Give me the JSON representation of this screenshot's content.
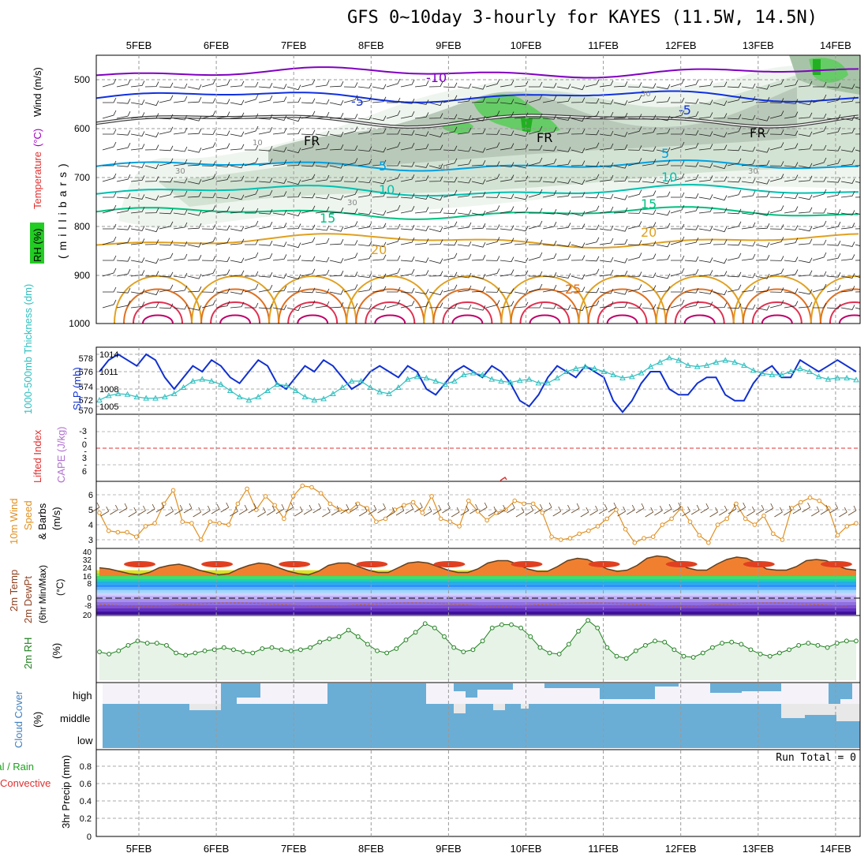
{
  "chart_data": {
    "type": "meteogram",
    "title": "GFS 0~10day 3-hourly for KAYES (11.5W, 14.5N)",
    "dates": [
      "5FEB",
      "6FEB",
      "7FEB",
      "8FEB",
      "9FEB",
      "10FEB",
      "11FEB",
      "12FEB",
      "13FEB",
      "14FEB"
    ],
    "upper": {
      "ylabel": "(millibars)",
      "title_parts": [
        {
          "text": "RH (%)",
          "color": "#00b000"
        },
        {
          "text": "Temperature",
          "color": "#e03030"
        },
        {
          "text": "(°C)",
          "color": "#a000c0"
        },
        {
          "text": "Wind (m/s)",
          "color": "#000000"
        }
      ],
      "ticks": [
        "500",
        "600",
        "700",
        "800",
        "900",
        "1000"
      ],
      "contour_labels": [
        {
          "text": "-10",
          "color": "#8000c0"
        },
        {
          "text": "-5",
          "color": "#1030e0"
        },
        {
          "text": "-5",
          "color": "#1030e0"
        },
        {
          "text": "FR",
          "color": "#000000"
        },
        {
          "text": "FR",
          "color": "#000000"
        },
        {
          "text": "FR",
          "color": "#000000"
        },
        {
          "text": "5",
          "color": "#00a0e0"
        },
        {
          "text": "5",
          "color": "#00a0e0"
        },
        {
          "text": "10",
          "color": "#00c0b0"
        },
        {
          "text": "10",
          "color": "#00c0b0"
        },
        {
          "text": "15",
          "color": "#00c080"
        },
        {
          "text": "15",
          "color": "#00c080"
        },
        {
          "text": "20",
          "color": "#e0a020"
        },
        {
          "text": "20",
          "color": "#e0a020"
        },
        {
          "text": "25",
          "color": "#e07020"
        },
        {
          "text": "10",
          "color": "#888888"
        },
        {
          "text": "30",
          "color": "#888888"
        },
        {
          "text": "50",
          "color": "#888888"
        },
        {
          "text": "30",
          "color": "#888888"
        },
        {
          "text": "30",
          "color": "#888888"
        },
        {
          "text": "30",
          "color": "#888888"
        }
      ]
    },
    "slp_panel": {
      "left_label": "1000-500mb Thickness (dm)",
      "right_label": "SLP (mb)",
      "thickness_ticks": [
        "578",
        "576",
        "574",
        "572",
        "570"
      ],
      "slp_ticks": [
        "1014",
        "1011",
        "1008",
        "1005"
      ],
      "slp": [
        1011,
        1013,
        1014,
        1013,
        1012,
        1014,
        1013,
        1010,
        1008,
        1010,
        1012,
        1011,
        1013,
        1012,
        1010,
        1009,
        1011,
        1013,
        1012,
        1009,
        1008,
        1010,
        1012,
        1011,
        1013,
        1012,
        1010,
        1008,
        1009,
        1011,
        1012,
        1011,
        1010,
        1012,
        1011,
        1008,
        1007,
        1009,
        1011,
        1012,
        1011,
        1010,
        1012,
        1011,
        1009,
        1006,
        1005,
        1007,
        1010,
        1012,
        1011,
        1010,
        1012,
        1011,
        1010,
        1006,
        1004,
        1006,
        1009,
        1011,
        1011,
        1008,
        1007,
        1007,
        1009,
        1010,
        1010,
        1007,
        1006,
        1006,
        1009,
        1011,
        1012,
        1010,
        1010,
        1013,
        1012,
        1011,
        1012,
        1013,
        1012,
        1011
      ],
      "thickness": [
        571.5,
        572.2,
        572.5,
        572.4,
        572.0,
        571.8,
        571.8,
        572.0,
        572.5,
        573.5,
        574.5,
        574.8,
        574.5,
        574.0,
        573.0,
        572.0,
        571.5,
        572.0,
        573.0,
        574.0,
        573.8,
        573.0,
        572.0,
        571.5,
        571.7,
        572.5,
        573.5,
        574.5,
        574.5,
        573.5,
        572.8,
        572.5,
        573.5,
        574.8,
        575.2,
        575.0,
        574.5,
        574.0,
        574.5,
        575.5,
        575.8,
        575.5,
        574.8,
        574.5,
        574.3,
        574.6,
        574.8,
        574.2,
        574.2,
        575.0,
        576.0,
        576.5,
        576.8,
        576.5,
        576.0,
        575.5,
        575.0,
        575.2,
        575.8,
        576.8,
        577.5,
        578.2,
        577.8,
        577.0,
        576.8,
        577.0,
        577.5,
        577.8,
        577.5,
        577.0,
        576.2,
        575.7,
        575.5,
        575.5,
        576.0,
        576.5,
        576.0,
        575.2,
        574.8,
        575.0,
        575.0,
        574.7
      ]
    },
    "li_panel": {
      "left_label": "Lifted Index",
      "right_label": "CAPE (J/kg)",
      "ticks": [
        "-3",
        "-",
        "0",
        "-",
        "3",
        "-",
        "6"
      ],
      "li_zero_label": "0"
    },
    "wind_panel": {
      "label1": "10m Wind",
      "label2": "Speed",
      "label3": "& Barbs",
      "unit": "(m/s)",
      "ticks": [
        "6",
        "5",
        "4",
        "3"
      ],
      "speed": [
        4.8,
        3.6,
        3.5,
        3.5,
        3.2,
        3.9,
        4.1,
        5.4,
        6.3,
        4.2,
        4.1,
        3.0,
        4.2,
        4.1,
        4.0,
        5.4,
        6.4,
        5.0,
        5.9,
        5.3,
        4.4,
        5.9,
        6.6,
        6.5,
        6.1,
        5.4,
        5.0,
        4.9,
        5.4,
        5.1,
        4.2,
        4.4,
        5.0,
        5.3,
        5.5,
        4.8,
        5.9,
        4.4,
        4.2,
        3.9,
        5.6,
        4.9,
        4.3,
        4.8,
        5.0,
        5.6,
        5.4,
        5.4,
        4.8,
        3.2,
        3.0,
        3.1,
        3.4,
        3.6,
        3.9,
        4.4,
        5.0,
        3.7,
        2.8,
        3.1,
        3.2,
        4.0,
        4.4,
        5.1,
        4.2,
        3.3,
        2.8,
        4.0,
        4.4,
        5.4,
        4.4,
        4.0,
        4.6,
        3.4,
        3.0,
        5.1,
        5.5,
        5.8,
        5.6,
        5.1,
        3.3,
        3.9,
        4.1
      ]
    },
    "temp_panel": {
      "label1": "2m Temp",
      "label2": "2m DewPt",
      "label3": "(6hr Min/Max)",
      "unit": "(°C)",
      "ticks": [
        "40",
        "32",
        "24",
        "16",
        "8",
        "0",
        "-8",
        "20"
      ],
      "temp": [
        27,
        26,
        24,
        22,
        21,
        23,
        27,
        29,
        30,
        28,
        25,
        23,
        21,
        22,
        26,
        29,
        31,
        30,
        27,
        24,
        22,
        21,
        24,
        29,
        31,
        31,
        28,
        25,
        23,
        23,
        27,
        31,
        32,
        31,
        28,
        25,
        23,
        23,
        26,
        31,
        33,
        33,
        30,
        26,
        24,
        24,
        28,
        33,
        35,
        34,
        30,
        26,
        24,
        25,
        29,
        35,
        37,
        36,
        32,
        27,
        25,
        25,
        30,
        34,
        36,
        35,
        31,
        26,
        25,
        25,
        28,
        33,
        34,
        33,
        29,
        26,
        25
      ]
    },
    "rh_panel": {
      "label": "2m RH",
      "unit": "(%)",
      "rh": [
        26,
        24,
        27,
        32,
        36,
        34,
        34,
        32,
        25,
        23,
        25,
        27,
        28,
        30,
        28,
        26,
        25,
        29,
        30,
        28,
        27,
        28,
        30,
        35,
        38,
        40,
        46,
        40,
        33,
        27,
        25,
        29,
        37,
        44,
        52,
        48,
        40,
        30,
        26,
        28,
        36,
        48,
        51,
        51,
        48,
        40,
        30,
        25,
        24,
        33,
        45,
        55,
        48,
        30,
        22,
        20,
        27,
        32,
        36,
        35,
        28,
        22,
        21,
        25,
        30,
        34,
        35,
        33,
        28,
        24,
        22,
        25,
        28,
        32,
        34,
        32,
        30,
        34,
        36,
        36
      ]
    },
    "cloud_panel": {
      "label": "Cloud Cover",
      "unit": "(%)",
      "levels": [
        "high",
        "middle",
        "low"
      ]
    },
    "precip_panel": {
      "label1": "Total / Rain",
      "label2": "Convective",
      "ylabel": "3hr Precip (mm)",
      "ticks": [
        "0.8",
        "0.6",
        "0.4",
        "0.2",
        "0"
      ],
      "run_total": "Run Total = 0"
    }
  }
}
